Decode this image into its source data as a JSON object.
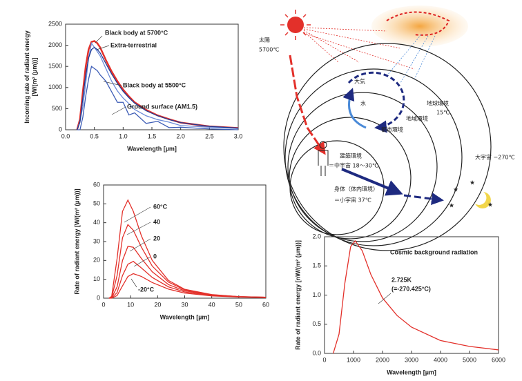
{
  "chart_data": [
    {
      "type": "line",
      "ylabel": [
        "Incoming rate of radiant energy",
        "[W/(m² (µm))]"
      ],
      "xlabel": "Wavelength [µm]",
      "xlim": [
        0,
        3
      ],
      "ylim": [
        0,
        2500
      ],
      "grid": false,
      "xticks": [
        {
          "value": 0,
          "label": "0.0"
        },
        0.5,
        {
          "value": 1,
          "label": "1.0"
        },
        1.5,
        {
          "value": 2,
          "label": "2.0"
        },
        2.5,
        {
          "value": 3,
          "label": "3.0"
        }
      ],
      "yticks": [
        0,
        500,
        1000,
        1500,
        2000,
        2500
      ],
      "x": [
        0.2,
        0.25,
        0.3,
        0.35,
        0.4,
        0.45,
        0.5,
        0.55,
        0.6,
        0.7,
        0.8,
        0.9,
        1.0,
        1.1,
        1.2,
        1.4,
        1.6,
        1.8,
        2.0,
        2.5,
        3.0
      ],
      "series": [
        {
          "name": "Black body at 5700°C",
          "color": "#e3302a",
          "values": [
            0,
            250,
            900,
            1500,
            1900,
            2080,
            2100,
            2050,
            1950,
            1650,
            1380,
            1150,
            950,
            790,
            650,
            470,
            340,
            250,
            170,
            80,
            40
          ]
        },
        {
          "name": "Extra-terrestrial",
          "color": "#6a8ad8",
          "values": [
            0,
            200,
            550,
            1100,
            1700,
            2050,
            1950,
            1850,
            1750,
            1450,
            1150,
            920,
            750,
            620,
            480,
            330,
            240,
            180,
            100,
            60,
            30
          ]
        },
        {
          "name": "Black body at 5500°C",
          "color": "#1f3a93",
          "values": [
            0,
            180,
            750,
            1300,
            1700,
            1900,
            1950,
            1900,
            1820,
            1570,
            1320,
            1100,
            910,
            760,
            630,
            450,
            330,
            240,
            170,
            80,
            40
          ]
        },
        {
          "name": "Ground surface (AM1.5)",
          "color": "#3b5bb5",
          "values": [
            0,
            0,
            300,
            800,
            1200,
            1500,
            1450,
            1400,
            1300,
            1150,
            900,
            650,
            650,
            350,
            400,
            150,
            200,
            50,
            60,
            20,
            0
          ]
        }
      ]
    },
    {
      "type": "line",
      "ylabel": [
        "Rate of radiant energy [W/(m² (µm))]"
      ],
      "xlabel": "Wavelength [µm]",
      "xlim": [
        0,
        60
      ],
      "ylim": [
        0,
        60
      ],
      "grid": false,
      "xticks": [
        0,
        10,
        20,
        30,
        40,
        50,
        60
      ],
      "yticks": [
        0,
        10,
        20,
        30,
        40,
        50,
        60
      ],
      "x": [
        2,
        3,
        5,
        7,
        9,
        11,
        14,
        18,
        24,
        30,
        40,
        50,
        60
      ],
      "series": [
        {
          "name": "60°C",
          "color": "#e3302a",
          "values": [
            0,
            1,
            21,
            46,
            52,
            46,
            33,
            20,
            9.4,
            4.7,
            1.9,
            0.8,
            0.5
          ]
        },
        {
          "name": "40",
          "color": "#e3302a",
          "values": [
            0,
            0.5,
            12,
            32,
            39,
            36,
            27,
            17,
            8.5,
            4.4,
            1.8,
            0.8,
            0.5
          ]
        },
        {
          "name": "20",
          "color": "#e3302a",
          "values": [
            0,
            0.2,
            6,
            20,
            27.5,
            27,
            21,
            14,
            7.2,
            3.9,
            1.6,
            0.8,
            0.4
          ]
        },
        {
          "name": "0",
          "color": "#e3302a",
          "values": [
            0,
            0.1,
            3,
            12,
            18,
            19.5,
            16,
            11,
            6,
            3.3,
            1.4,
            0.7,
            0.4
          ]
        },
        {
          "name": "-20°C",
          "color": "#e3302a",
          "values": [
            0,
            0,
            1.4,
            6.5,
            11.5,
            13,
            11.5,
            8.3,
            4.8,
            2.7,
            1.2,
            0.6,
            0.3
          ]
        }
      ]
    },
    {
      "type": "line",
      "ylabel": [
        "Rate of radiant energy [nW/(m² (µm))]"
      ],
      "xlabel": "Wavelength [µm]",
      "annotations": [
        "Cosmic background radiation",
        "2.725K",
        "(=-270.425°C)"
      ],
      "xlim": [
        0,
        6000
      ],
      "ylim": [
        0,
        2
      ],
      "grid": false,
      "xticks": [
        0,
        1000,
        2000,
        3000,
        4000,
        5000,
        6000
      ],
      "yticks": [
        {
          "value": 0,
          "label": "0.0"
        },
        0.5,
        {
          "value": 1,
          "label": "1.0"
        },
        1.5,
        {
          "value": 2,
          "label": "2.0"
        }
      ],
      "x": [
        300,
        500,
        700,
        900,
        1060,
        1300,
        1600,
        2000,
        2500,
        3000,
        4000,
        5000,
        6000
      ],
      "color": "#e3302a",
      "values": [
        0,
        0.33,
        1.2,
        1.83,
        1.93,
        1.76,
        1.35,
        0.95,
        0.65,
        0.45,
        0.22,
        0.12,
        0.06
      ]
    }
  ],
  "diagram": {
    "sun": "太陽",
    "sun_temp": "5700℃",
    "earth": "地球環境",
    "earth_temp": "15℃",
    "region": "地域環境",
    "city": "都市環境",
    "building": "建築環境",
    "building_note": "＝中宇宙 18～30℃",
    "body": "身体（体内環境）",
    "body_note": "＝小宇宙 37℃",
    "universe": "大宇宙 −270℃",
    "air": "大気",
    "water": "水"
  }
}
